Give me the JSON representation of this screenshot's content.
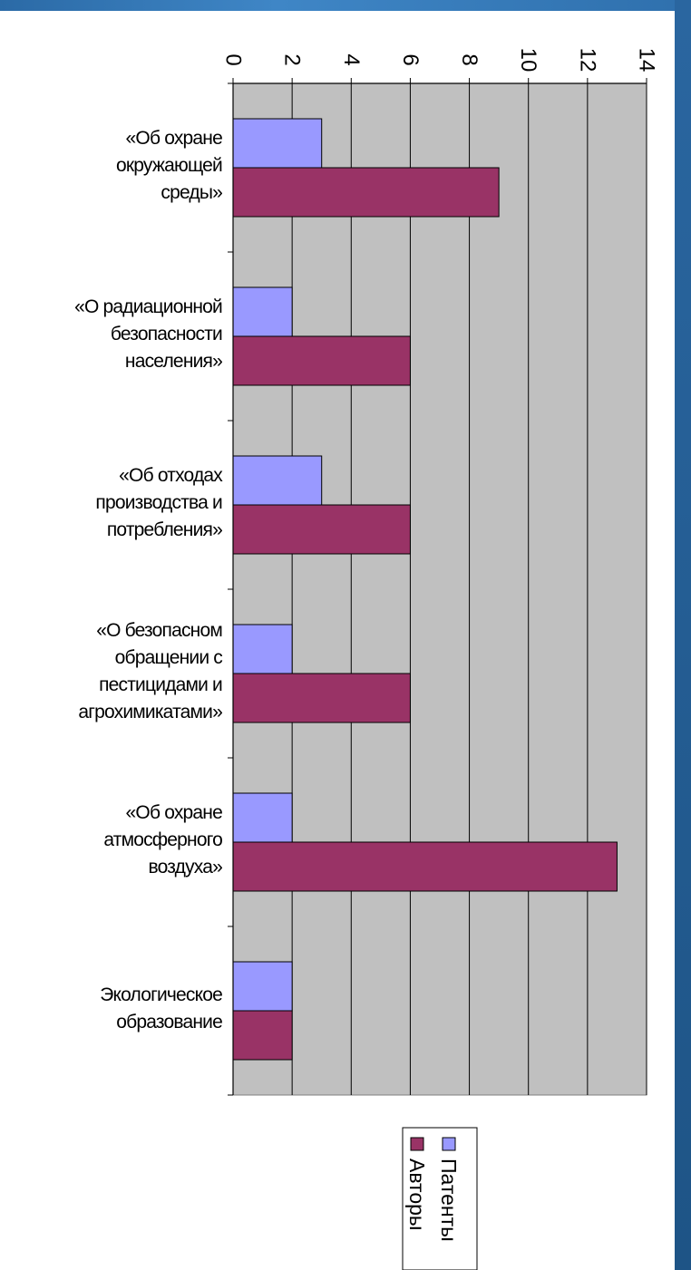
{
  "chart_data": {
    "type": "bar",
    "orientation": "horizontal",
    "categories": [
      "«Об охране окружающей среды»",
      "«О радиационной безопасности населения»",
      "«Об отходах производства и потребления»",
      "«О безопасном обращении с пестицидами и агрохимикатами»",
      "«Об охране атмосферного воздуха»",
      "Экологическое образование"
    ],
    "category_lines": [
      [
        "«Об охране",
        "окружающей",
        "среды»"
      ],
      [
        "«О радиационной",
        "безопасности",
        "населения»"
      ],
      [
        "«Об отходах",
        "производства и",
        "потребления»"
      ],
      [
        "«О безопасном",
        "обращении с",
        "пестицидами и",
        "агрохимикатами»"
      ],
      [
        "«Об охране",
        "атмосферного",
        "воздуха»"
      ],
      [
        "Экологическое",
        "образование"
      ]
    ],
    "series": [
      {
        "name": "Патенты",
        "color": "#9999ff",
        "values": [
          3,
          2,
          3,
          2,
          2,
          2
        ]
      },
      {
        "name": "Авторы",
        "color": "#993366",
        "values": [
          9,
          6,
          6,
          6,
          13,
          2
        ]
      }
    ],
    "ticks": [
      "0",
      "2",
      "4",
      "6",
      "8",
      "10",
      "12",
      "14"
    ],
    "xlim": [
      0,
      14
    ],
    "grid": true,
    "plot_background": "#c0c0c0",
    "legend_position": "bottom",
    "title": "",
    "xlabel": "",
    "ylabel": ""
  }
}
